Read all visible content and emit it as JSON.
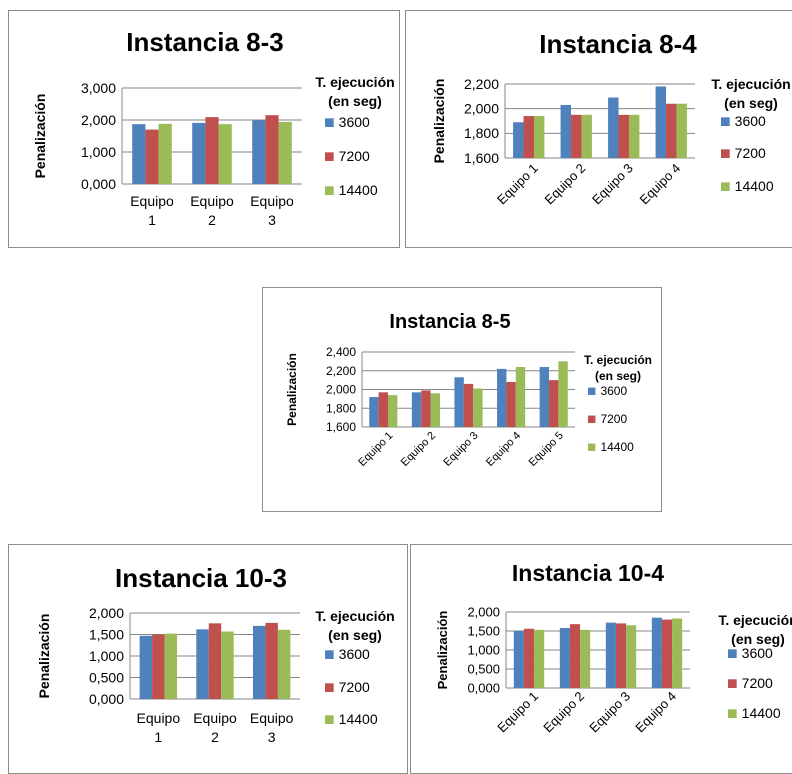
{
  "series_colors": [
    "#4f81bd",
    "#c0504d",
    "#9bbb59"
  ],
  "chart_data": [
    {
      "type": "bar",
      "title": "Instancia 8-3",
      "ylabel": "Penalización",
      "xlabel": "",
      "categories": [
        "Equipo 1",
        "Equipo 2",
        "Equipo 3"
      ],
      "category_lines": [
        [
          "Equipo",
          "1"
        ],
        [
          "Equipo",
          "2"
        ],
        [
          "Equipo",
          "3"
        ]
      ],
      "ylim": [
        0,
        3000
      ],
      "yticks": [
        0,
        1000,
        2000,
        3000
      ],
      "ytick_labels": [
        "0,000",
        "1,000",
        "2,000",
        "3,000"
      ],
      "legend_title": [
        "T. ejecución",
        "(en seg)"
      ],
      "series": [
        {
          "name": "3600",
          "values": [
            1870,
            1910,
            1990
          ]
        },
        {
          "name": "7200",
          "values": [
            1700,
            2090,
            2150
          ]
        },
        {
          "name": "14400",
          "values": [
            1880,
            1870,
            1940
          ]
        }
      ]
    },
    {
      "type": "bar",
      "title": "Instancia 8-4",
      "ylabel": "Penalización",
      "xlabel": "",
      "categories": [
        "Equipo 1",
        "Equipo 2",
        "Equipo 3",
        "Equipo 4"
      ],
      "ylim": [
        1600,
        2200
      ],
      "yticks": [
        1600,
        1800,
        2000,
        2200
      ],
      "ytick_labels": [
        "1,600",
        "1,800",
        "2,000",
        "2,200"
      ],
      "legend_title": [
        "T. ejecución",
        "(en seg)"
      ],
      "series": [
        {
          "name": "3600",
          "values": [
            1890,
            2030,
            2090,
            2180
          ]
        },
        {
          "name": "7200",
          "values": [
            1940,
            1950,
            1950,
            2040
          ]
        },
        {
          "name": "14400",
          "values": [
            1940,
            1950,
            1950,
            2040
          ]
        }
      ]
    },
    {
      "type": "bar",
      "title": "Instancia 8-5",
      "ylabel": "Penalización",
      "xlabel": "",
      "categories": [
        "Equipo 1",
        "Equipo 2",
        "Equipo 3",
        "Equipo 4",
        "Equipo 5"
      ],
      "ylim": [
        1600,
        2400
      ],
      "yticks": [
        1600,
        1800,
        2000,
        2200,
        2400
      ],
      "ytick_labels": [
        "1,600",
        "1,800",
        "2,000",
        "2,200",
        "2,400"
      ],
      "legend_title": [
        "T. ejecución",
        "(en seg)"
      ],
      "series": [
        {
          "name": "3600",
          "values": [
            1920,
            1970,
            2130,
            2220,
            2240
          ]
        },
        {
          "name": "7200",
          "values": [
            1970,
            1990,
            2060,
            2080,
            2100
          ]
        },
        {
          "name": "14400",
          "values": [
            1940,
            1960,
            2010,
            2240,
            2300
          ]
        }
      ]
    },
    {
      "type": "bar",
      "title": "Instancia 10-3",
      "ylabel": "Penalización",
      "xlabel": "",
      "categories": [
        "Equipo 1",
        "Equipo 2",
        "Equipo 3"
      ],
      "category_lines": [
        [
          "Equipo",
          "1"
        ],
        [
          "Equipo",
          "2"
        ],
        [
          "Equipo",
          "3"
        ]
      ],
      "ylim": [
        0,
        2000
      ],
      "yticks": [
        0,
        500,
        1000,
        1500,
        2000
      ],
      "ytick_labels": [
        "0,000",
        "0,500",
        "1,000",
        "1,500",
        "2,000"
      ],
      "legend_title": [
        "T. ejecución",
        "(en seg)"
      ],
      "series": [
        {
          "name": "3600",
          "values": [
            1470,
            1620,
            1700
          ]
        },
        {
          "name": "7200",
          "values": [
            1500,
            1760,
            1770
          ]
        },
        {
          "name": "14400",
          "values": [
            1520,
            1570,
            1610
          ]
        }
      ]
    },
    {
      "type": "bar",
      "title": "Instancia 10-4",
      "ylabel": "Penalización",
      "xlabel": "",
      "categories": [
        "Equipo 1",
        "Equipo 2",
        "Equipo 3",
        "Equipo 4"
      ],
      "ylim": [
        0,
        2000
      ],
      "yticks": [
        0,
        500,
        1000,
        1500,
        2000
      ],
      "ytick_labels": [
        "0,000",
        "0,500",
        "1,000",
        "1,500",
        "2,000"
      ],
      "legend_title": [
        "T. ejecución",
        "(en seg)"
      ],
      "series": [
        {
          "name": "3600",
          "values": [
            1500,
            1580,
            1720,
            1850
          ]
        },
        {
          "name": "7200",
          "values": [
            1560,
            1680,
            1700,
            1800
          ]
        },
        {
          "name": "14400",
          "values": [
            1530,
            1530,
            1650,
            1830
          ]
        }
      ]
    }
  ]
}
